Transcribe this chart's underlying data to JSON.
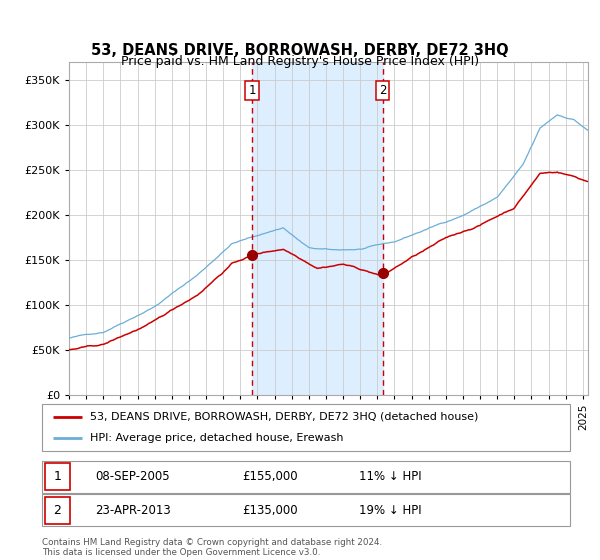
{
  "title": "53, DEANS DRIVE, BORROWASH, DERBY, DE72 3HQ",
  "subtitle": "Price paid vs. HM Land Registry's House Price Index (HPI)",
  "legend_line1": "53, DEANS DRIVE, BORROWASH, DERBY, DE72 3HQ (detached house)",
  "legend_line2": "HPI: Average price, detached house, Erewash",
  "annotation1": {
    "label": "1",
    "date_str": "08-SEP-2005",
    "price": "£155,000",
    "hpi_text": "11% ↓ HPI",
    "x_year": 2005.69,
    "y_val": 155000
  },
  "annotation2": {
    "label": "2",
    "date_str": "23-APR-2013",
    "price": "£135,000",
    "hpi_text": "19% ↓ HPI",
    "x_year": 2013.31,
    "y_val": 135000
  },
  "footer": "Contains HM Land Registry data © Crown copyright and database right 2024.\nThis data is licensed under the Open Government Licence v3.0.",
  "hpi_color": "#6baed6",
  "price_color": "#cc0000",
  "marker_color": "#990000",
  "shading_color": "#ddeeff",
  "dashed_color": "#cc0000",
  "background_color": "#ffffff",
  "grid_color": "#cccccc",
  "ylim": [
    0,
    370000
  ],
  "xlim_start": 1995.0,
  "xlim_end": 2025.3
}
